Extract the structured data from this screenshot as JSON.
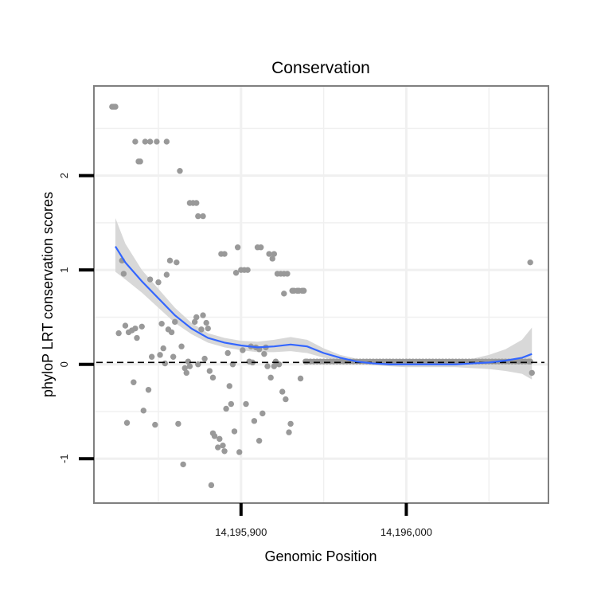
{
  "chart_data": {
    "type": "scatter",
    "title": "Conservation",
    "xlabel": "Genomic Position",
    "ylabel": "phyloP LRT conservation scores",
    "xlim": [
      14195811,
      14196086
    ],
    "ylim": [
      -1.47,
      2.95
    ],
    "x_ticks": [
      {
        "value": 14195900,
        "label": "14,195,900"
      },
      {
        "value": 14196000,
        "label": "14,196,000"
      }
    ],
    "y_ticks": [
      {
        "value": -1,
        "label": "-1"
      },
      {
        "value": 0,
        "label": "0"
      },
      {
        "value": 1,
        "label": "1"
      },
      {
        "value": 2,
        "label": "2"
      }
    ],
    "grid": true,
    "reference_line": {
      "y": 0.02,
      "style": "dashed"
    },
    "colors": {
      "points": "#999999",
      "smooth": "#3366ff",
      "ribbon": "#d4d4d4",
      "frame": "#7f7f7f",
      "grid": "#f0f0f0"
    },
    "points": [
      [
        14195822,
        2.73
      ],
      [
        14195823,
        2.73
      ],
      [
        14195824,
        2.73
      ],
      [
        14195826,
        0.33
      ],
      [
        14195828,
        1.1
      ],
      [
        14195829,
        0.96
      ],
      [
        14195830,
        0.41
      ],
      [
        14195831,
        -0.62
      ],
      [
        14195832,
        0.34
      ],
      [
        14195834,
        0.36
      ],
      [
        14195835,
        -0.19
      ],
      [
        14195836,
        0.38
      ],
      [
        14195836,
        2.36
      ],
      [
        14195837,
        0.28
      ],
      [
        14195838,
        2.15
      ],
      [
        14195839,
        2.15
      ],
      [
        14195840,
        0.4
      ],
      [
        14195841,
        -0.49
      ],
      [
        14195842,
        2.36
      ],
      [
        14195844,
        -0.27
      ],
      [
        14195845,
        2.36
      ],
      [
        14195845,
        0.9
      ],
      [
        14195846,
        0.08
      ],
      [
        14195848,
        -0.64
      ],
      [
        14195849,
        2.36
      ],
      [
        14195850,
        0.87
      ],
      [
        14195851,
        0.1
      ],
      [
        14195852,
        0.43
      ],
      [
        14195853,
        0.17
      ],
      [
        14195854,
        0.01
      ],
      [
        14195855,
        2.36
      ],
      [
        14195855,
        0.95
      ],
      [
        14195856,
        0.37
      ],
      [
        14195857,
        1.1
      ],
      [
        14195858,
        0.34
      ],
      [
        14195859,
        0.08
      ],
      [
        14195860,
        0.45
      ],
      [
        14195861,
        1.08
      ],
      [
        14195862,
        -0.63
      ],
      [
        14195863,
        2.05
      ],
      [
        14195864,
        0.19
      ],
      [
        14195865,
        -1.06
      ],
      [
        14195866,
        -0.04
      ],
      [
        14195867,
        -0.09
      ],
      [
        14195868,
        0.03
      ],
      [
        14195869,
        1.71
      ],
      [
        14195869,
        -0.02
      ],
      [
        14195871,
        1.71
      ],
      [
        14195872,
        0.45
      ],
      [
        14195873,
        1.71
      ],
      [
        14195873,
        0.5
      ],
      [
        14195874,
        1.57
      ],
      [
        14195874,
        0.0
      ],
      [
        14195876,
        0.37
      ],
      [
        14195877,
        1.57
      ],
      [
        14195877,
        0.52
      ],
      [
        14195878,
        0.06
      ],
      [
        14195879,
        0.44
      ],
      [
        14195880,
        0.38
      ],
      [
        14195881,
        -0.07
      ],
      [
        14195882,
        -1.28
      ],
      [
        14195883,
        -0.73
      ],
      [
        14195883,
        -0.14
      ],
      [
        14195884,
        -0.76
      ],
      [
        14195886,
        -0.88
      ],
      [
        14195887,
        -0.79
      ],
      [
        14195888,
        1.17
      ],
      [
        14195889,
        -0.86
      ],
      [
        14195890,
        -0.92
      ],
      [
        14195890,
        1.17
      ],
      [
        14195891,
        -0.47
      ],
      [
        14195892,
        0.12
      ],
      [
        14195893,
        -0.23
      ],
      [
        14195894,
        -0.42
      ],
      [
        14195895,
        0.0
      ],
      [
        14195896,
        -0.71
      ],
      [
        14195897,
        0.97
      ],
      [
        14195898,
        1.24
      ],
      [
        14195899,
        -0.93
      ],
      [
        14195900,
        1.0
      ],
      [
        14195901,
        0.15
      ],
      [
        14195902,
        1.0
      ],
      [
        14195903,
        -0.42
      ],
      [
        14195904,
        1.0
      ],
      [
        14195905,
        0.03
      ],
      [
        14195906,
        0.19
      ],
      [
        14195907,
        0.02
      ],
      [
        14195908,
        -0.6
      ],
      [
        14195909,
        0.18
      ],
      [
        14195910,
        1.24
      ],
      [
        14195911,
        -0.81
      ],
      [
        14195911,
        0.16
      ],
      [
        14195912,
        1.24
      ],
      [
        14195913,
        -0.52
      ],
      [
        14195914,
        0.11
      ],
      [
        14195915,
        0.18
      ],
      [
        14195916,
        -0.02
      ],
      [
        14195917,
        1.17
      ],
      [
        14195918,
        -0.14
      ],
      [
        14195919,
        1.12
      ],
      [
        14195920,
        -0.02
      ],
      [
        14195920,
        1.17
      ],
      [
        14195921,
        0.03
      ],
      [
        14195922,
        0.96
      ],
      [
        14195923,
        0.0
      ],
      [
        14195924,
        0.96
      ],
      [
        14195925,
        -0.29
      ],
      [
        14195926,
        0.75
      ],
      [
        14195926,
        0.96
      ],
      [
        14195927,
        -0.37
      ],
      [
        14195928,
        0.96
      ],
      [
        14195929,
        -0.72
      ],
      [
        14195930,
        -0.63
      ],
      [
        14195931,
        0.78
      ],
      [
        14195932,
        0.78
      ],
      [
        14195934,
        0.78
      ],
      [
        14195935,
        0.78
      ],
      [
        14195936,
        -0.15
      ],
      [
        14195937,
        0.78
      ],
      [
        14195938,
        0.78
      ],
      [
        14195939,
        0.03
      ],
      [
        14195940,
        0.03
      ],
      [
        14195942,
        0.03
      ],
      [
        14195944,
        0.03
      ],
      [
        14195946,
        0.03
      ],
      [
        14195948,
        0.03
      ],
      [
        14195950,
        0.03
      ],
      [
        14195952,
        0.03
      ],
      [
        14195954,
        0.03
      ],
      [
        14195956,
        0.03
      ],
      [
        14195958,
        0.03
      ],
      [
        14195960,
        0.03
      ],
      [
        14195962,
        0.03
      ],
      [
        14195964,
        0.03
      ],
      [
        14195966,
        0.03
      ],
      [
        14195968,
        0.03
      ],
      [
        14195970,
        0.03
      ],
      [
        14195972,
        0.03
      ],
      [
        14195974,
        0.03
      ],
      [
        14195976,
        0.03
      ],
      [
        14195978,
        0.03
      ],
      [
        14195980,
        0.03
      ],
      [
        14195982,
        0.03
      ],
      [
        14195984,
        0.03
      ],
      [
        14195986,
        0.03
      ],
      [
        14195988,
        0.03
      ],
      [
        14195990,
        0.03
      ],
      [
        14195992,
        0.03
      ],
      [
        14195994,
        0.03
      ],
      [
        14195996,
        0.03
      ],
      [
        14195998,
        0.03
      ],
      [
        14196000,
        0.03
      ],
      [
        14196002,
        0.03
      ],
      [
        14196004,
        0.03
      ],
      [
        14196006,
        0.03
      ],
      [
        14196008,
        0.03
      ],
      [
        14196010,
        0.03
      ],
      [
        14196012,
        0.03
      ],
      [
        14196014,
        0.03
      ],
      [
        14196016,
        0.03
      ],
      [
        14196018,
        0.03
      ],
      [
        14196020,
        0.03
      ],
      [
        14196022,
        0.03
      ],
      [
        14196024,
        0.03
      ],
      [
        14196026,
        0.03
      ],
      [
        14196028,
        0.03
      ],
      [
        14196030,
        0.03
      ],
      [
        14196032,
        0.03
      ],
      [
        14196034,
        0.03
      ],
      [
        14196036,
        0.03
      ],
      [
        14196038,
        0.03
      ],
      [
        14196040,
        0.03
      ],
      [
        14196042,
        0.03
      ],
      [
        14196044,
        0.03
      ],
      [
        14196046,
        0.03
      ],
      [
        14196048,
        0.03
      ],
      [
        14196050,
        0.03
      ],
      [
        14196052,
        0.03
      ],
      [
        14196054,
        0.03
      ],
      [
        14196056,
        0.03
      ],
      [
        14196058,
        0.03
      ],
      [
        14196060,
        0.03
      ],
      [
        14196062,
        0.03
      ],
      [
        14196064,
        0.03
      ],
      [
        14196066,
        0.03
      ],
      [
        14196068,
        0.03
      ],
      [
        14196070,
        0.03
      ],
      [
        14196072,
        0.03
      ],
      [
        14196074,
        0.03
      ],
      [
        14196075,
        0.03
      ],
      [
        14196075,
        1.08
      ],
      [
        14196076,
        -0.09
      ]
    ],
    "smooth": {
      "x": [
        14195824,
        14195830,
        14195840,
        14195850,
        14195860,
        14195870,
        14195880,
        14195890,
        14195900,
        14195910,
        14195920,
        14195930,
        14195940,
        14195950,
        14195960,
        14195970,
        14195980,
        14195990,
        14196000,
        14196010,
        14196020,
        14196030,
        14196040,
        14196050,
        14196060,
        14196070,
        14196076
      ],
      "y": [
        1.25,
        1.08,
        0.88,
        0.7,
        0.52,
        0.38,
        0.28,
        0.23,
        0.2,
        0.18,
        0.19,
        0.21,
        0.19,
        0.12,
        0.07,
        0.03,
        0.01,
        0.0,
        0.0,
        0.0,
        0.0,
        0.0,
        0.01,
        0.02,
        0.04,
        0.07,
        0.11
      ],
      "lower": [
        0.98,
        0.9,
        0.76,
        0.6,
        0.44,
        0.32,
        0.23,
        0.18,
        0.15,
        0.13,
        0.13,
        0.14,
        0.12,
        0.07,
        0.04,
        0.01,
        -0.01,
        -0.02,
        -0.03,
        -0.03,
        -0.03,
        -0.03,
        -0.04,
        -0.05,
        -0.07,
        -0.1,
        -0.16
      ],
      "upper": [
        1.55,
        1.28,
        1.0,
        0.8,
        0.6,
        0.44,
        0.33,
        0.28,
        0.25,
        0.24,
        0.26,
        0.29,
        0.26,
        0.17,
        0.1,
        0.06,
        0.03,
        0.02,
        0.02,
        0.02,
        0.03,
        0.04,
        0.06,
        0.1,
        0.16,
        0.26,
        0.39
      ]
    }
  }
}
